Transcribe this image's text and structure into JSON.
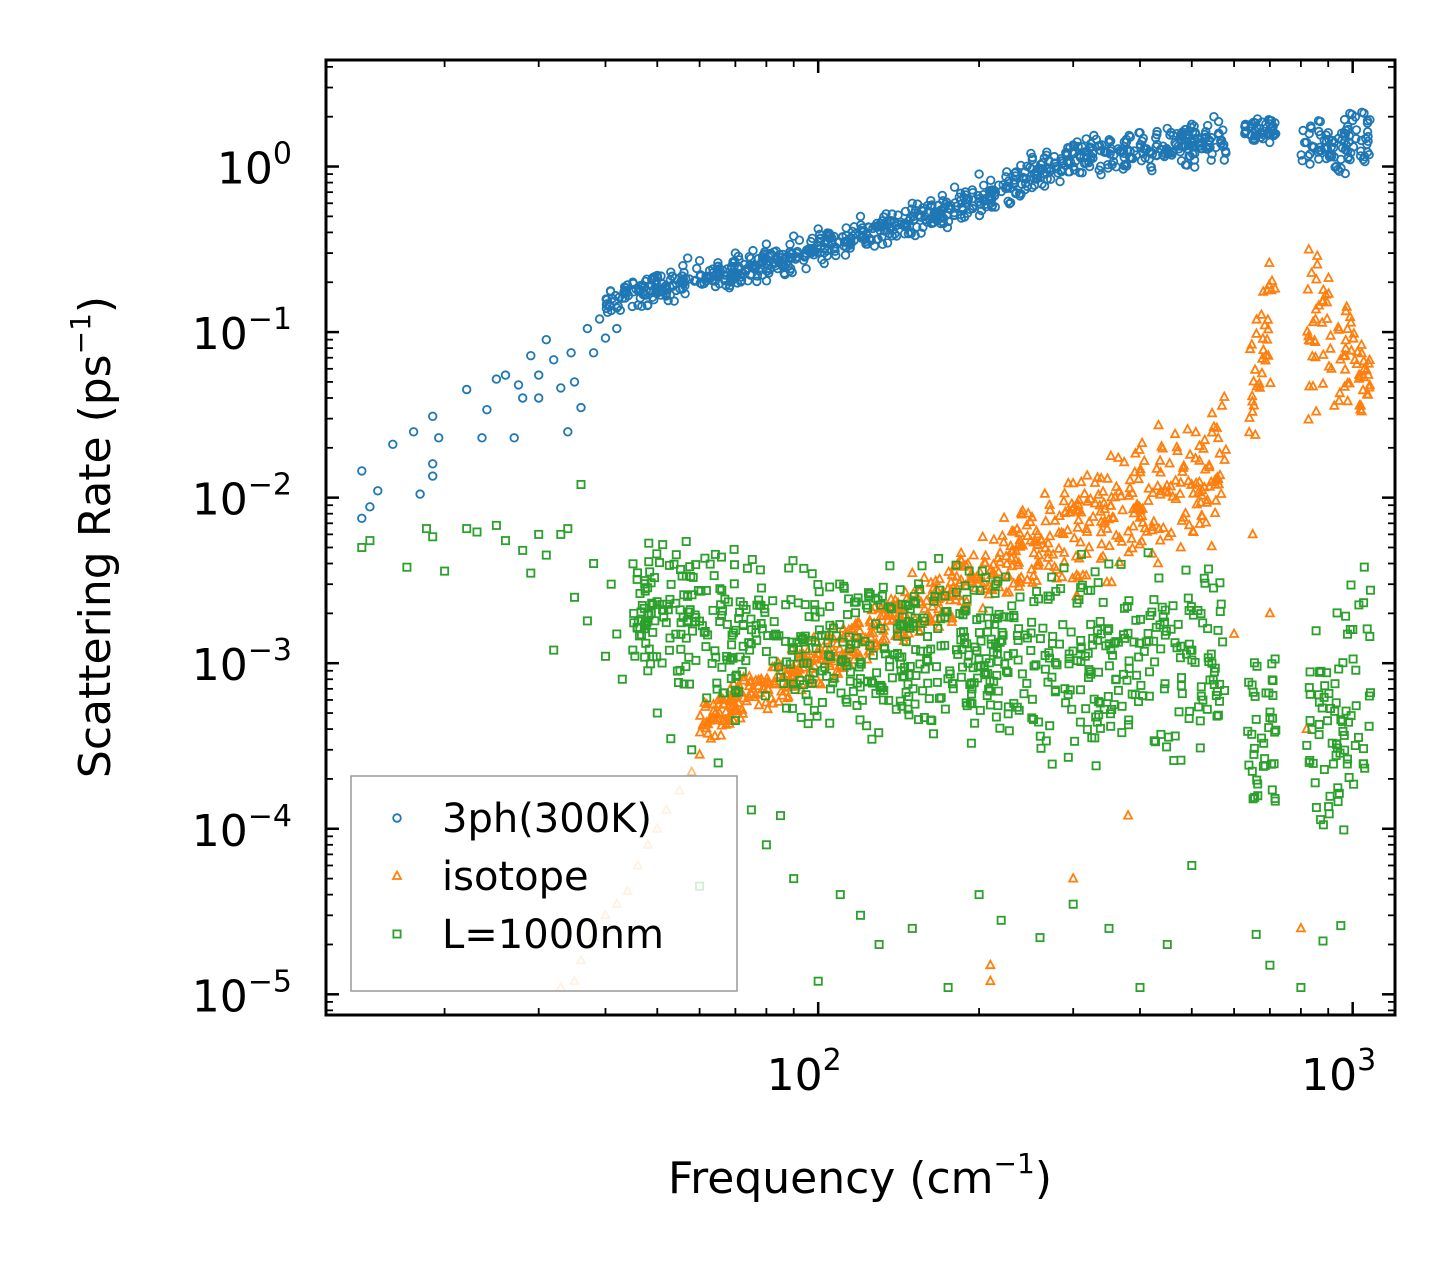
{
  "chart_data": {
    "type": "scatter",
    "title": "",
    "xlabel": "Frequency (cm",
    "xlabel_sup": "−1",
    "xlabel_close": ")",
    "ylabel": "Scattering Rate (ps",
    "ylabel_sup": "−1",
    "ylabel_close": ")",
    "xscale": "log",
    "yscale": "log",
    "xlim": [
      12,
      1200
    ],
    "ylim": [
      7.5e-06,
      4.4
    ],
    "x_ticks": [
      {
        "base": "10",
        "exp": "2",
        "value": 100
      },
      {
        "base": "10",
        "exp": "3",
        "value": 1000
      }
    ],
    "y_ticks": [
      {
        "base": "10",
        "exp": "0",
        "value": 1
      },
      {
        "base": "10",
        "exp": "−1",
        "value": 0.1
      },
      {
        "base": "10",
        "exp": "−2",
        "value": 0.01
      },
      {
        "base": "10",
        "exp": "−3",
        "value": 0.001
      },
      {
        "base": "10",
        "exp": "−4",
        "value": 0.0001
      },
      {
        "base": "10",
        "exp": "−5",
        "value": 1e-05
      }
    ],
    "legend_position": "lower-left",
    "series": [
      {
        "name": "3ph(300K)",
        "marker": "circle",
        "color": "#1f77b4",
        "points": [
          [
            14,
            0.0075
          ],
          [
            14,
            0.0145
          ],
          [
            14.5,
            0.0088
          ],
          [
            15,
            0.011
          ],
          [
            16,
            0.021
          ],
          [
            17.5,
            0.025
          ],
          [
            18,
            0.0105
          ],
          [
            19,
            0.031
          ],
          [
            19,
            0.016
          ],
          [
            19,
            0.0135
          ],
          [
            19.5,
            0.023
          ],
          [
            22,
            0.045
          ],
          [
            23.5,
            0.023
          ],
          [
            24,
            0.034
          ],
          [
            25,
            0.052
          ],
          [
            26,
            0.055
          ],
          [
            27,
            0.023
          ],
          [
            27.5,
            0.048
          ],
          [
            28,
            0.04
          ],
          [
            29,
            0.072
          ],
          [
            30,
            0.055
          ],
          [
            30,
            0.04
          ],
          [
            31,
            0.09
          ],
          [
            32,
            0.068
          ],
          [
            33,
            0.046
          ],
          [
            34,
            0.025
          ],
          [
            34.5,
            0.075
          ],
          [
            35,
            0.05
          ],
          [
            36,
            0.035
          ],
          [
            37,
            0.105
          ],
          [
            38,
            0.075
          ],
          [
            39,
            0.12
          ],
          [
            40,
            0.092
          ],
          [
            41,
            0.135
          ],
          [
            42,
            0.105
          ],
          [
            43,
            0.16
          ],
          [
            45,
            0.2
          ],
          [
            47,
            0.19
          ],
          [
            50,
            0.22
          ],
          [
            53,
            0.23
          ],
          [
            57,
            0.28
          ],
          [
            60,
            0.27
          ],
          [
            65,
            0.25
          ],
          [
            70,
            0.3
          ],
          [
            80,
            0.34
          ],
          [
            90,
            0.38
          ],
          [
            100,
            0.42
          ],
          [
            120,
            0.5
          ],
          [
            150,
            0.6
          ],
          [
            180,
            0.75
          ],
          [
            200,
            0.9
          ],
          [
            250,
            1.2
          ],
          [
            300,
            1.35
          ],
          [
            350,
            1.4
          ],
          [
            400,
            1.6
          ],
          [
            450,
            1.7
          ],
          [
            500,
            1.8
          ],
          [
            550,
            2.0
          ],
          [
            630,
            1.8
          ],
          [
            700,
            1.9
          ],
          [
            820,
            1.4
          ],
          [
            900,
            1.6
          ],
          [
            1000,
            1.9
          ],
          [
            1050,
            2.1
          ]
        ],
        "bands": [
          {
            "x": [
              40,
              80
            ],
            "y_lo": [
              0.12,
              0.2
            ],
            "y_hi": [
              0.2,
              0.33
            ]
          },
          {
            "x": [
              80,
              200
            ],
            "y_lo": [
              0.2,
              0.48
            ],
            "y_hi": [
              0.33,
              0.8
            ]
          },
          {
            "x": [
              200,
              300
            ],
            "y_lo": [
              0.48,
              0.85
            ],
            "y_hi": [
              0.8,
              1.6
            ]
          },
          {
            "x": [
              300,
              580
            ],
            "y_lo": [
              0.85,
              1.0
            ],
            "y_hi": [
              1.5,
              2.0
            ]
          },
          {
            "x": [
              620,
              720
            ],
            "y_lo": [
              1.3,
              1.35
            ],
            "y_hi": [
              2.0,
              2.0
            ]
          },
          {
            "x": [
              800,
              1080
            ],
            "y_lo": [
              0.8,
              0.9
            ],
            "y_hi": [
              1.9,
              2.3
            ]
          }
        ]
      },
      {
        "name": "isotope",
        "marker": "triangle",
        "color": "#ff7f0e",
        "light_color": "#ffbb78",
        "points": [
          [
            33,
            1.1e-05
          ],
          [
            35,
            1.2e-05
          ],
          [
            36,
            1.6e-05
          ],
          [
            38,
            2.2e-05
          ],
          [
            40,
            3e-05
          ],
          [
            42,
            3.5e-05
          ],
          [
            44,
            4.2e-05
          ],
          [
            46,
            6e-05
          ],
          [
            48,
            8e-05
          ],
          [
            50,
            0.0001
          ],
          [
            52,
            0.00013
          ],
          [
            55,
            0.00017
          ],
          [
            58,
            0.00022
          ],
          [
            60,
            0.00028
          ],
          [
            63,
            0.00035
          ],
          [
            66,
            0.00042
          ],
          [
            70,
            0.00052
          ],
          [
            75,
            0.00065
          ],
          [
            150,
            0.0035
          ],
          [
            210,
            1.5e-05
          ],
          [
            210,
            1.2e-05
          ],
          [
            300,
            5e-05
          ],
          [
            380,
            0.00012
          ],
          [
            600,
            0.0015
          ],
          [
            650,
            0.006
          ],
          [
            700,
            0.002
          ],
          [
            800,
            2.5e-05
          ],
          [
            820,
            0.0004
          ]
        ],
        "bands": [
          {
            "x": [
              60,
              140
            ],
            "y_lo": [
              0.0003,
              0.0012
            ],
            "y_hi": [
              0.0006,
              0.003
            ]
          },
          {
            "x": [
              140,
              300
            ],
            "y_lo": [
              0.0012,
              0.003
            ],
            "y_hi": [
              0.003,
              0.015
            ]
          },
          {
            "x": [
              300,
              580
            ],
            "y_lo": [
              0.002,
              0.005
            ],
            "y_hi": [
              0.015,
              0.055
            ]
          },
          {
            "x": [
              640,
              720
            ],
            "y_lo": [
              0.01,
              0.05
            ],
            "y_hi": [
              0.15,
              0.6
            ]
          },
          {
            "x": [
              820,
              1080
            ],
            "y_lo": [
              0.02,
              0.03
            ],
            "y_hi": [
              0.8,
              0.08
            ]
          }
        ]
      },
      {
        "name": "L=1000nm",
        "marker": "square",
        "color": "#2ca02c",
        "points": [
          [
            14,
            0.005
          ],
          [
            14.5,
            0.0055
          ],
          [
            17,
            0.0038
          ],
          [
            18.5,
            0.0065
          ],
          [
            19,
            0.0058
          ],
          [
            20,
            0.0036
          ],
          [
            22,
            0.0065
          ],
          [
            23,
            0.0062
          ],
          [
            25,
            0.0068
          ],
          [
            26,
            0.0055
          ],
          [
            28,
            0.0048
          ],
          [
            29,
            0.0035
          ],
          [
            30,
            0.006
          ],
          [
            31,
            0.0045
          ],
          [
            32,
            0.0012
          ],
          [
            33,
            0.006
          ],
          [
            34,
            0.0065
          ],
          [
            35,
            0.0025
          ],
          [
            36,
            0.012
          ],
          [
            37,
            0.0018
          ],
          [
            38,
            0.004
          ],
          [
            40,
            0.0011
          ],
          [
            41,
            0.003
          ],
          [
            42,
            0.0015
          ],
          [
            43,
            0.0008
          ],
          [
            45,
            0.0012
          ],
          [
            48,
            0.0009
          ],
          [
            50,
            0.0005
          ],
          [
            53,
            0.00035
          ],
          [
            58,
            0.0003
          ],
          [
            60,
            4.5e-05
          ],
          [
            65,
            0.00025
          ],
          [
            70,
            0.00045
          ],
          [
            75,
            0.00013
          ],
          [
            80,
            8e-05
          ],
          [
            85,
            0.00012
          ],
          [
            90,
            5e-05
          ],
          [
            100,
            1.2e-05
          ],
          [
            110,
            4e-05
          ],
          [
            120,
            3e-05
          ],
          [
            130,
            2e-05
          ],
          [
            150,
            2.5e-05
          ],
          [
            175,
            1.1e-05
          ],
          [
            200,
            4e-05
          ],
          [
            220,
            2.8e-05
          ],
          [
            260,
            2.2e-05
          ],
          [
            300,
            3.5e-05
          ],
          [
            350,
            2.5e-05
          ],
          [
            400,
            1.1e-05
          ],
          [
            450,
            2e-05
          ],
          [
            500,
            6e-05
          ],
          [
            660,
            2.3e-05
          ],
          [
            700,
            1.5e-05
          ],
          [
            800,
            1.1e-05
          ],
          [
            880,
            2.1e-05
          ],
          [
            950,
            2.6e-05
          ]
        ],
        "bands": [
          {
            "x": [
              45,
              100
            ],
            "y_lo": [
              0.0008,
              0.0003
            ],
            "y_hi": [
              0.006,
              0.005
            ]
          },
          {
            "x": [
              100,
              580
            ],
            "y_lo": [
              0.0003,
              0.0002
            ],
            "y_hi": [
              0.005,
              0.005
            ]
          },
          {
            "x": [
              630,
              720
            ],
            "y_lo": [
              0.0001,
              0.0001
            ],
            "y_hi": [
              0.0013,
              0.0013
            ]
          },
          {
            "x": [
              820,
              1080
            ],
            "y_lo": [
              8e-05,
              0.0001
            ],
            "y_hi": [
              0.0015,
              0.006
            ]
          }
        ]
      }
    ]
  }
}
